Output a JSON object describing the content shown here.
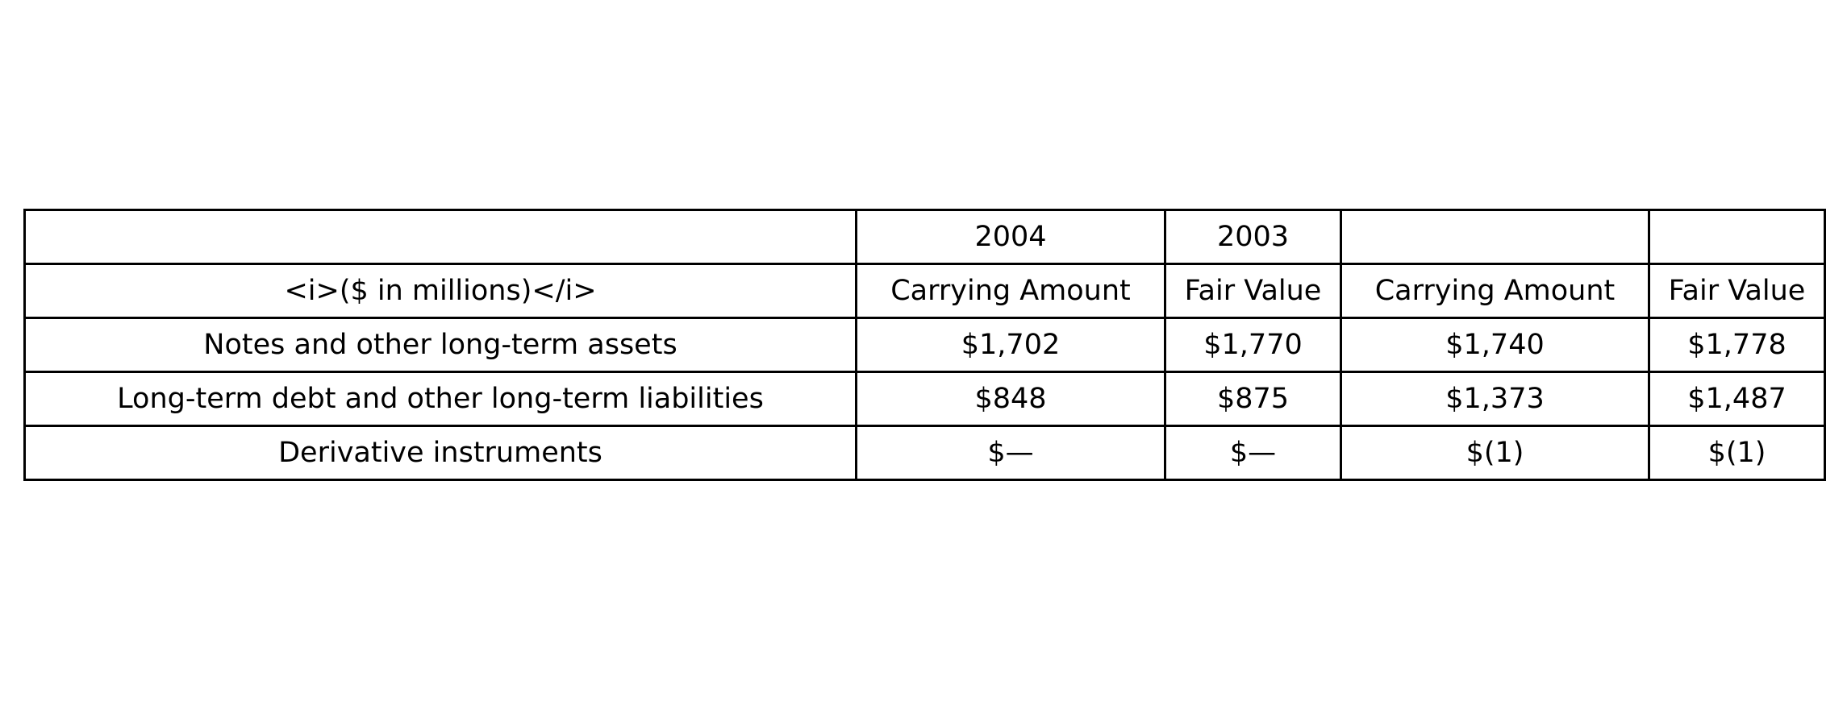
{
  "table": {
    "year_row": [
      "",
      "2004",
      "2003",
      "",
      ""
    ],
    "header_row": [
      "<i>($ in millions)</i>",
      "Carrying Amount",
      "Fair Value",
      "Carrying Amount",
      "Fair Value"
    ],
    "rows": [
      [
        "Notes and other long-term assets",
        "$1,702",
        "$1,770",
        "$1,740",
        "$1,778"
      ],
      [
        "Long-term debt and other long-term liabilities",
        "$848",
        "$875",
        "$1,373",
        "$1,487"
      ],
      [
        "Derivative instruments",
        "$—",
        "$—",
        "$(1)",
        "$(1)"
      ]
    ]
  }
}
